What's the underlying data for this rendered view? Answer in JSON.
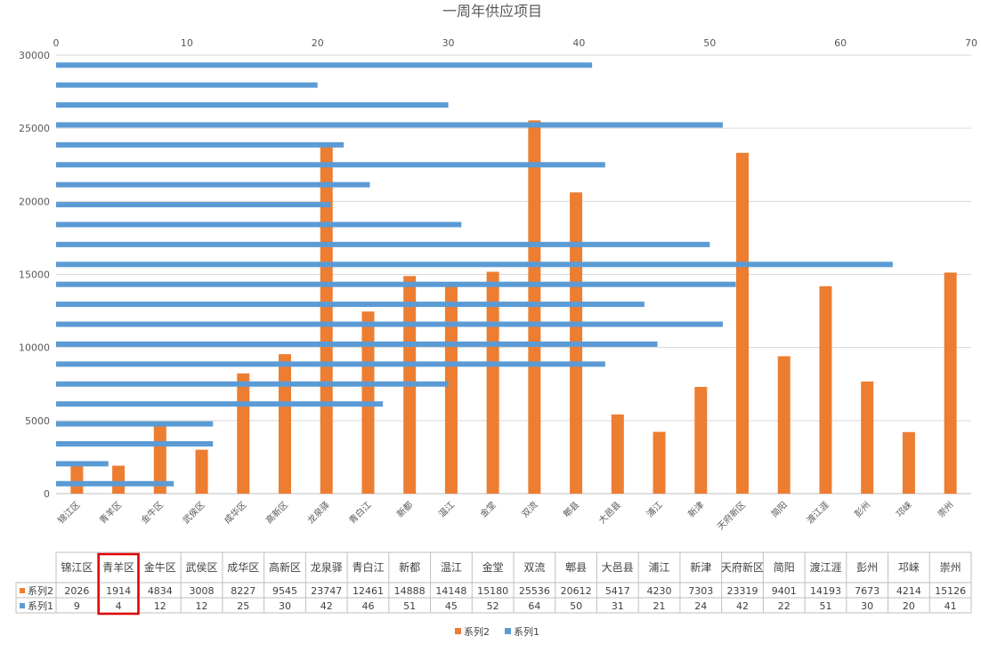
{
  "chart_data": {
    "type": "bar",
    "title": "一周年供应项目",
    "categories": [
      "锦江区",
      "青羊区",
      "金牛区",
      "武侯区",
      "成华区",
      "高新区",
      "龙泉驿",
      "青白江",
      "新都",
      "温江",
      "金堂",
      "双流",
      "郫县",
      "大邑县",
      "浦江",
      "新津",
      "天府新区",
      "简阳",
      "渡江涯",
      "彭州",
      "邛崃",
      "崇州"
    ],
    "series": [
      {
        "name": "系列2",
        "axis": "primary-y",
        "orientation": "vertical",
        "color": "#ED7D31",
        "values": [
          2026,
          1914,
          4834,
          3008,
          8227,
          9545,
          23747,
          12461,
          14888,
          14148,
          15180,
          25536,
          20612,
          5417,
          4230,
          7303,
          23319,
          9401,
          14193,
          7673,
          4214,
          15126
        ]
      },
      {
        "name": "系列1",
        "axis": "secondary-x",
        "orientation": "horizontal",
        "color": "#5B9BD5",
        "values": [
          9,
          4,
          12,
          12,
          25,
          30,
          42,
          46,
          51,
          45,
          52,
          64,
          50,
          31,
          21,
          24,
          42,
          22,
          51,
          30,
          20,
          41
        ]
      }
    ],
    "y_axis": {
      "min": 0,
      "max": 30000,
      "ticks": [
        "0",
        "5000",
        "10000",
        "15000",
        "20000",
        "25000",
        "30000"
      ]
    },
    "x_top_axis": {
      "min": 0,
      "max": 70,
      "ticks": [
        "0",
        "10",
        "20",
        "30",
        "40",
        "50",
        "60",
        "70"
      ]
    },
    "grid": true,
    "legend": {
      "position": "bottom",
      "items": [
        "系列2",
        "系列1"
      ]
    },
    "data_table": true,
    "highlighted_column": "青羊区"
  }
}
